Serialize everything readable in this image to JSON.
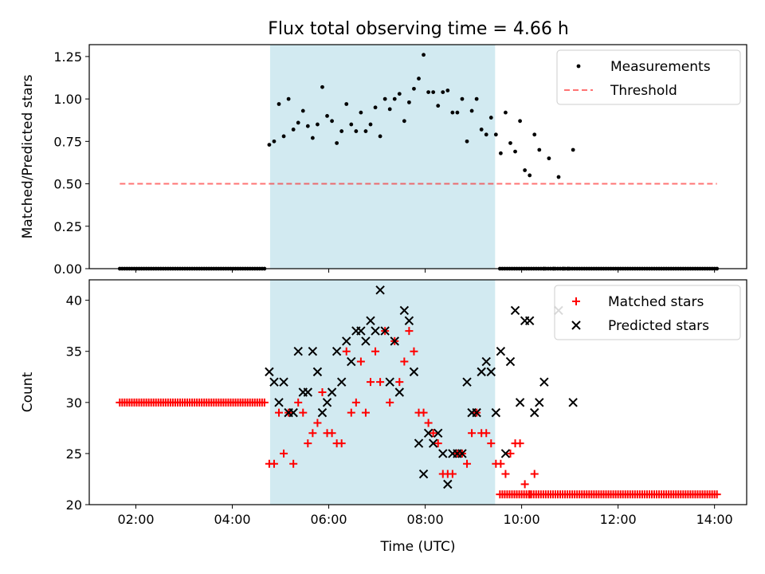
{
  "figure_title": "Flux total observing time = 4.66 h",
  "colors": {
    "shade": "#add8e6",
    "measurement": "#000000",
    "threshold": "#ff0000",
    "matched": "#ff0000",
    "predicted": "#000000"
  },
  "chart_data": [
    {
      "type": "scatter",
      "panel": "top",
      "title": "Flux total observing time = 4.66 h",
      "xlabel": "",
      "ylabel": "Matched/Predicted stars",
      "xlim": [
        "01:02",
        "14:40"
      ],
      "ylim": [
        0,
        1.32
      ],
      "x_tick_labels": [
        "02:00",
        "04:00",
        "06:00",
        "08:00",
        "10:00",
        "12:00",
        "14:00"
      ],
      "y_tick_labels": [
        "0.00",
        "0.25",
        "0.50",
        "0.75",
        "1.00",
        "1.25"
      ],
      "shaded_interval": [
        "04:47",
        "09:27"
      ],
      "legend": {
        "placement": "upper right",
        "entries": [
          "Measurements",
          "Threshold"
        ]
      },
      "threshold": {
        "name": "Threshold",
        "y": 0.5,
        "x_range": [
          "01:40",
          "14:03"
        ]
      },
      "zero_series": {
        "x_start": "01:40",
        "x_end": "04:41",
        "step_minutes": 3,
        "y": 0
      },
      "zero_series_2": {
        "x_start": "09:33",
        "x_end": "14:03",
        "step_minutes": 3,
        "y": 0
      },
      "series": [
        {
          "name": "Measurements",
          "points": [
            [
              "04:46",
              0.73
            ],
            [
              "04:52",
              0.75
            ],
            [
              "04:58",
              0.97
            ],
            [
              "05:04",
              0.78
            ],
            [
              "05:10",
              1.0
            ],
            [
              "05:16",
              0.82
            ],
            [
              "05:22",
              0.86
            ],
            [
              "05:28",
              0.93
            ],
            [
              "05:34",
              0.84
            ],
            [
              "05:40",
              0.77
            ],
            [
              "05:46",
              0.85
            ],
            [
              "05:52",
              1.07
            ],
            [
              "05:58",
              0.9
            ],
            [
              "06:04",
              0.87
            ],
            [
              "06:10",
              0.74
            ],
            [
              "06:16",
              0.81
            ],
            [
              "06:22",
              0.97
            ],
            [
              "06:28",
              0.85
            ],
            [
              "06:34",
              0.81
            ],
            [
              "06:40",
              0.92
            ],
            [
              "06:46",
              0.81
            ],
            [
              "06:52",
              0.85
            ],
            [
              "06:58",
              0.95
            ],
            [
              "07:04",
              0.78
            ],
            [
              "07:10",
              1.0
            ],
            [
              "07:16",
              0.94
            ],
            [
              "07:22",
              1.0
            ],
            [
              "07:28",
              1.03
            ],
            [
              "07:34",
              0.87
            ],
            [
              "07:40",
              0.98
            ],
            [
              "07:46",
              1.06
            ],
            [
              "07:52",
              1.12
            ],
            [
              "07:58",
              1.26
            ],
            [
              "08:04",
              1.04
            ],
            [
              "08:10",
              1.04
            ],
            [
              "08:16",
              0.96
            ],
            [
              "08:22",
              1.04
            ],
            [
              "08:28",
              1.05
            ],
            [
              "08:34",
              0.92
            ],
            [
              "08:40",
              0.92
            ],
            [
              "08:46",
              1.0
            ],
            [
              "08:52",
              0.75
            ],
            [
              "08:58",
              0.93
            ],
            [
              "09:04",
              1.0
            ],
            [
              "09:10",
              0.82
            ],
            [
              "09:16",
              0.79
            ],
            [
              "09:22",
              0.89
            ],
            [
              "09:28",
              0.79
            ],
            [
              "09:34",
              0.68
            ],
            [
              "09:40",
              0.92
            ],
            [
              "09:46",
              0.74
            ],
            [
              "09:52",
              0.69
            ],
            [
              "09:58",
              0.87
            ],
            [
              "10:04",
              0.58
            ],
            [
              "10:10",
              0.55
            ],
            [
              "10:16",
              0.79
            ],
            [
              "10:22",
              0.7
            ],
            [
              "10:28",
              0.0
            ],
            [
              "10:34",
              0.65
            ],
            [
              "10:40",
              0.0
            ],
            [
              "10:46",
              0.54
            ],
            [
              "10:52",
              0.0
            ],
            [
              "10:58",
              0.0
            ],
            [
              "11:04",
              0.7
            ]
          ]
        }
      ]
    },
    {
      "type": "scatter",
      "panel": "bottom",
      "xlabel": "Time (UTC)",
      "ylabel": "Count",
      "xlim": [
        "01:02",
        "14:40"
      ],
      "ylim": [
        20,
        42
      ],
      "x_tick_labels": [
        "02:00",
        "04:00",
        "06:00",
        "08:00",
        "10:00",
        "12:00",
        "14:00"
      ],
      "y_tick_labels": [
        "20",
        "25",
        "30",
        "35",
        "40"
      ],
      "shaded_interval": [
        "04:47",
        "09:27"
      ],
      "legend": {
        "placement": "upper right",
        "entries": [
          "Matched stars",
          "Predicted stars"
        ]
      },
      "flat_matched_before": {
        "x_start": "01:40",
        "x_end": "04:41",
        "step_minutes": 3,
        "y": 30
      },
      "flat_matched_after": {
        "x_start": "09:33",
        "x_end": "14:03",
        "step_minutes": 3,
        "y": 21
      },
      "series": [
        {
          "name": "Matched stars",
          "points": [
            [
              "04:46",
              24
            ],
            [
              "04:52",
              24
            ],
            [
              "04:58",
              29
            ],
            [
              "05:04",
              25
            ],
            [
              "05:10",
              29
            ],
            [
              "05:16",
              24
            ],
            [
              "05:22",
              30
            ],
            [
              "05:28",
              29
            ],
            [
              "05:34",
              26
            ],
            [
              "05:40",
              27
            ],
            [
              "05:46",
              28
            ],
            [
              "05:52",
              31
            ],
            [
              "05:58",
              27
            ],
            [
              "06:04",
              27
            ],
            [
              "06:10",
              26
            ],
            [
              "06:16",
              26
            ],
            [
              "06:22",
              35
            ],
            [
              "06:28",
              29
            ],
            [
              "06:34",
              30
            ],
            [
              "06:40",
              34
            ],
            [
              "06:46",
              29
            ],
            [
              "06:52",
              32
            ],
            [
              "06:58",
              35
            ],
            [
              "07:04",
              32
            ],
            [
              "07:10",
              37
            ],
            [
              "07:16",
              30
            ],
            [
              "07:22",
              36
            ],
            [
              "07:28",
              32
            ],
            [
              "07:34",
              34
            ],
            [
              "07:40",
              37
            ],
            [
              "07:46",
              35
            ],
            [
              "07:52",
              29
            ],
            [
              "07:58",
              29
            ],
            [
              "08:04",
              28
            ],
            [
              "08:10",
              27
            ],
            [
              "08:16",
              26
            ],
            [
              "08:22",
              23
            ],
            [
              "08:28",
              23
            ],
            [
              "08:34",
              23
            ],
            [
              "08:40",
              25
            ],
            [
              "08:46",
              25
            ],
            [
              "08:52",
              24
            ],
            [
              "08:58",
              27
            ],
            [
              "09:04",
              29
            ],
            [
              "09:10",
              27
            ],
            [
              "09:16",
              27
            ],
            [
              "09:22",
              26
            ],
            [
              "09:28",
              24
            ],
            [
              "09:34",
              24
            ],
            [
              "09:40",
              23
            ],
            [
              "09:46",
              25
            ],
            [
              "09:52",
              26
            ],
            [
              "09:58",
              26
            ],
            [
              "10:04",
              22
            ],
            [
              "10:10",
              21
            ],
            [
              "10:16",
              23
            ]
          ]
        },
        {
          "name": "Predicted stars",
          "points": [
            [
              "04:46",
              33
            ],
            [
              "04:52",
              32
            ],
            [
              "04:58",
              30
            ],
            [
              "05:04",
              32
            ],
            [
              "05:10",
              29
            ],
            [
              "05:16",
              29
            ],
            [
              "05:22",
              35
            ],
            [
              "05:28",
              31
            ],
            [
              "05:34",
              31
            ],
            [
              "05:40",
              35
            ],
            [
              "05:46",
              33
            ],
            [
              "05:52",
              29
            ],
            [
              "05:58",
              30
            ],
            [
              "06:04",
              31
            ],
            [
              "06:10",
              35
            ],
            [
              "06:16",
              32
            ],
            [
              "06:22",
              36
            ],
            [
              "06:28",
              34
            ],
            [
              "06:34",
              37
            ],
            [
              "06:40",
              37
            ],
            [
              "06:46",
              36
            ],
            [
              "06:52",
              38
            ],
            [
              "06:58",
              37
            ],
            [
              "07:04",
              41
            ],
            [
              "07:10",
              37
            ],
            [
              "07:16",
              32
            ],
            [
              "07:22",
              36
            ],
            [
              "07:28",
              31
            ],
            [
              "07:34",
              39
            ],
            [
              "07:40",
              38
            ],
            [
              "07:46",
              33
            ],
            [
              "07:52",
              26
            ],
            [
              "07:58",
              23
            ],
            [
              "08:04",
              27
            ],
            [
              "08:10",
              26
            ],
            [
              "08:16",
              27
            ],
            [
              "08:22",
              25
            ],
            [
              "08:28",
              22
            ],
            [
              "08:34",
              25
            ],
            [
              "08:40",
              25
            ],
            [
              "08:46",
              25
            ],
            [
              "08:52",
              32
            ],
            [
              "08:58",
              29
            ],
            [
              "09:04",
              29
            ],
            [
              "09:10",
              33
            ],
            [
              "09:16",
              34
            ],
            [
              "09:22",
              33
            ],
            [
              "09:28",
              29
            ],
            [
              "09:34",
              35
            ],
            [
              "09:40",
              25
            ],
            [
              "09:46",
              34
            ],
            [
              "09:52",
              39
            ],
            [
              "09:58",
              30
            ],
            [
              "10:04",
              38
            ],
            [
              "10:10",
              38
            ],
            [
              "10:16",
              29
            ],
            [
              "10:22",
              30
            ],
            [
              "10:28",
              32
            ],
            [
              "10:46",
              39
            ],
            [
              "11:04",
              30
            ]
          ]
        }
      ]
    }
  ]
}
